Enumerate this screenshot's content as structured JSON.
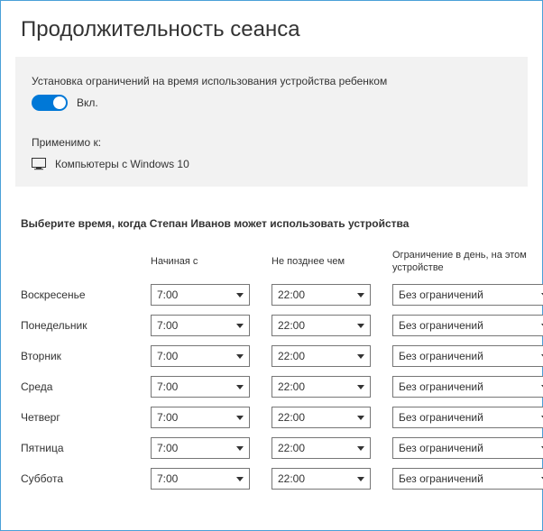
{
  "page": {
    "title": "Продолжительность сеанса"
  },
  "settings": {
    "toggle_description": "Установка ограничений на время использования устройства ребенком",
    "toggle_state_label": "Вкл.",
    "toggle_on": true,
    "applies_to_label": "Применимо к:",
    "device_label": "Компьютеры с Windows 10"
  },
  "schedule": {
    "instruction": "Выберите время, когда Степан Иванов может использовать устройства",
    "col_from": "Начиная с",
    "col_to": "Не позднее чем",
    "col_limit": "Ограничение в день, на этом устройстве",
    "days": [
      {
        "name": "Воскресенье",
        "from": "7:00",
        "to": "22:00",
        "limit": "Без ограничений"
      },
      {
        "name": "Понедельник",
        "from": "7:00",
        "to": "22:00",
        "limit": "Без ограничений"
      },
      {
        "name": "Вторник",
        "from": "7:00",
        "to": "22:00",
        "limit": "Без ограничений"
      },
      {
        "name": "Среда",
        "from": "7:00",
        "to": "22:00",
        "limit": "Без ограничений"
      },
      {
        "name": "Четверг",
        "from": "7:00",
        "to": "22:00",
        "limit": "Без ограничений"
      },
      {
        "name": "Пятница",
        "from": "7:00",
        "to": "22:00",
        "limit": "Без ограничений"
      },
      {
        "name": "Суббота",
        "from": "7:00",
        "to": "22:00",
        "limit": "Без ограничений"
      }
    ]
  },
  "colors": {
    "accent": "#0078d7",
    "border": "#4aa0d8",
    "panel_bg": "#f2f2f2",
    "text": "#333333",
    "select_border": "#767676"
  }
}
